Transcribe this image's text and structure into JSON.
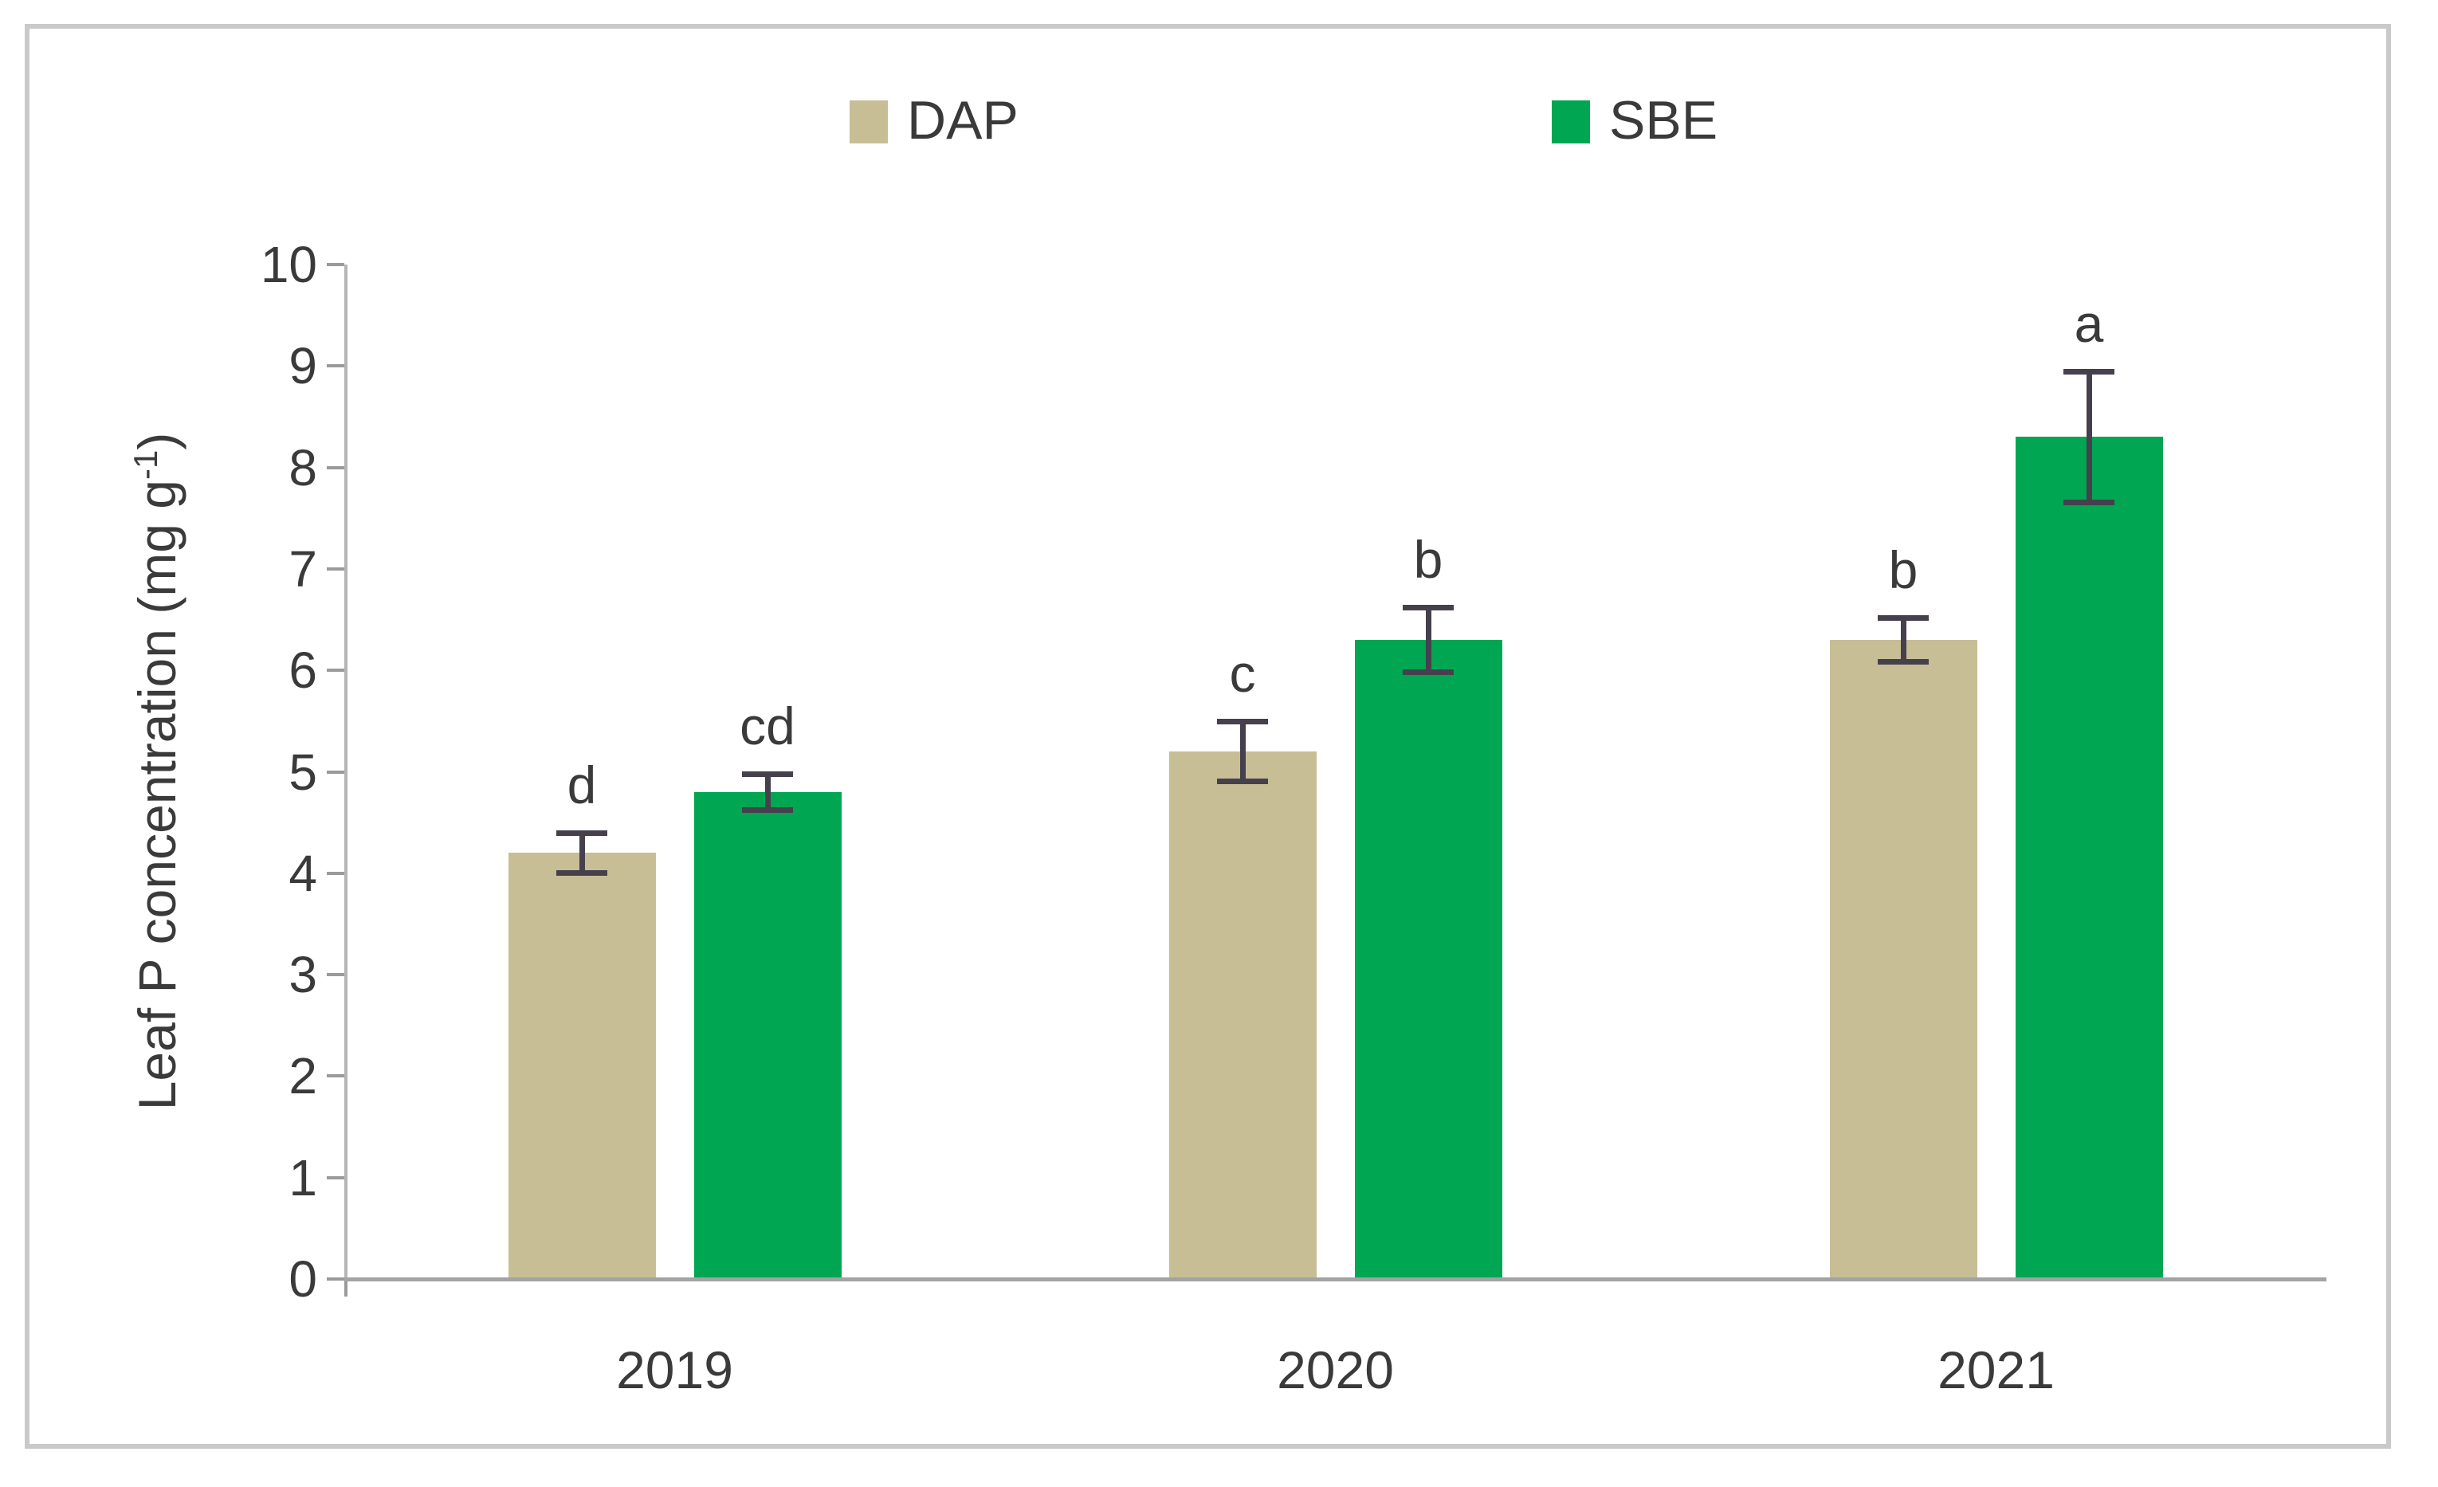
{
  "figure": {
    "background": "#FFFFFF",
    "border_color": "#C9C9C9"
  },
  "legend": {
    "position": "top",
    "items": [
      {
        "label": "DAP",
        "color": "#C7BE96"
      },
      {
        "label": "SBE",
        "color": "#00A651"
      }
    ]
  },
  "y_axis": {
    "label_prefix": "Leaf P concentration (mg g",
    "label_sup": "-1",
    "label_suffix": ")",
    "tick_labels": [
      "0",
      "1",
      "2",
      "3",
      "4",
      "5",
      "6",
      "7",
      "8",
      "9",
      "10"
    ]
  },
  "chart_data": {
    "type": "bar",
    "title": "",
    "categories": [
      "2019",
      "2020",
      "2021"
    ],
    "series": [
      {
        "name": "DAP",
        "color": "#C7BE96",
        "values": [
          4.2,
          5.2,
          6.3
        ],
        "errors": [
          0.2,
          0.3,
          0.22
        ],
        "sig_letters": [
          "d",
          "c",
          "b"
        ]
      },
      {
        "name": "SBE",
        "color": "#00A651",
        "values": [
          4.8,
          6.3,
          8.3
        ],
        "errors": [
          0.18,
          0.32,
          0.65
        ],
        "sig_letters": [
          "cd",
          "b",
          "a"
        ]
      }
    ],
    "xlabel": "",
    "ylabel": "Leaf P concentration (mg g⁻¹)",
    "ylim": [
      0,
      10
    ],
    "yticks": [
      0,
      1,
      2,
      3,
      4,
      5,
      6,
      7,
      8,
      9,
      10
    ],
    "grid": false,
    "legend_position": "top-center",
    "error_bar_color": "#46404D"
  }
}
